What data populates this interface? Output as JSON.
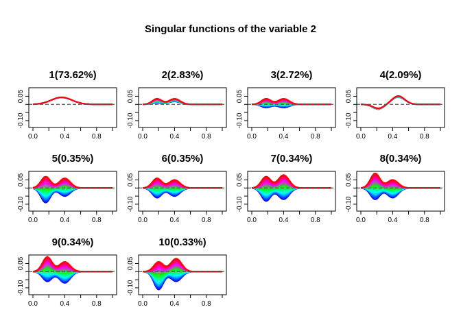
{
  "title": "Singular functions of the variable 2",
  "chart_data": {
    "type": "line",
    "title": "Singular functions of the variable 2",
    "layout": "3 rows x 4 columns, 10 panels",
    "xlim": [
      0,
      1
    ],
    "ylim": [
      -0.13,
      0.09
    ],
    "x_ticks": [
      "0.0",
      "0.4",
      "0.8"
    ],
    "x_tick_values": [
      0.0,
      0.4,
      0.8
    ],
    "y_ticks": [
      "-0.10",
      "0.05"
    ],
    "y_tick_values": [
      -0.1,
      0.05
    ],
    "reference_line": {
      "y": 0,
      "style": "dashed",
      "color": "#555555"
    },
    "color_ramp": [
      "#0000ff",
      "#00ffff",
      "#00ff00",
      "#ff00ff",
      "#ff0000"
    ],
    "panels": [
      {
        "label": "1(73.62%)",
        "curves": 10,
        "components": [
          {
            "center": 0.36,
            "width": 0.13,
            "amp": [
              0.042,
              0.044
            ]
          }
        ]
      },
      {
        "label": "2(2.83%)",
        "curves": 10,
        "components": [
          {
            "center": 0.18,
            "width": 0.06,
            "amp": [
              0.01,
              0.035
            ]
          },
          {
            "center": 0.4,
            "width": 0.07,
            "amp": [
              0.018,
              0.035
            ]
          }
        ]
      },
      {
        "label": "3(2.72%)",
        "curves": 10,
        "components": [
          {
            "center": 0.18,
            "width": 0.06,
            "amp": [
              -0.02,
              0.035
            ]
          },
          {
            "center": 0.4,
            "width": 0.07,
            "amp": [
              -0.02,
              0.035
            ]
          }
        ]
      },
      {
        "label": "4(2.09%)",
        "curves": 10,
        "components": [
          {
            "center": 0.22,
            "width": 0.07,
            "amp": [
              -0.03,
              -0.024
            ]
          },
          {
            "center": 0.47,
            "width": 0.08,
            "amp": [
              0.045,
              0.052
            ]
          }
        ]
      },
      {
        "label": "5(0.35%)",
        "curves": 20,
        "components": [
          {
            "center": 0.16,
            "width": 0.06,
            "amp": [
              -0.09,
              0.07
            ]
          },
          {
            "center": 0.4,
            "width": 0.07,
            "amp": [
              -0.05,
              0.06
            ]
          }
        ]
      },
      {
        "label": "6(0.35%)",
        "curves": 20,
        "components": [
          {
            "center": 0.18,
            "width": 0.06,
            "amp": [
              -0.06,
              0.06
            ]
          },
          {
            "center": 0.4,
            "width": 0.07,
            "amp": [
              -0.05,
              0.05
            ]
          }
        ]
      },
      {
        "label": "7(0.34%)",
        "curves": 20,
        "components": [
          {
            "center": 0.18,
            "width": 0.06,
            "amp": [
              -0.08,
              0.07
            ]
          },
          {
            "center": 0.4,
            "width": 0.07,
            "amp": [
              -0.07,
              0.08
            ]
          }
        ]
      },
      {
        "label": "8(0.34%)",
        "curves": 20,
        "components": [
          {
            "center": 0.18,
            "width": 0.06,
            "amp": [
              -0.07,
              0.09
            ]
          },
          {
            "center": 0.4,
            "width": 0.07,
            "amp": [
              -0.06,
              0.05
            ]
          }
        ]
      },
      {
        "label": "9(0.34%)",
        "curves": 20,
        "components": [
          {
            "center": 0.18,
            "width": 0.06,
            "amp": [
              -0.06,
              0.09
            ]
          },
          {
            "center": 0.4,
            "width": 0.07,
            "amp": [
              -0.07,
              0.06
            ]
          }
        ]
      },
      {
        "label": "10(0.33%)",
        "curves": 20,
        "components": [
          {
            "center": 0.2,
            "width": 0.06,
            "amp": [
              -0.11,
              0.06
            ]
          },
          {
            "center": 0.42,
            "width": 0.07,
            "amp": [
              -0.06,
              0.08
            ]
          }
        ]
      }
    ]
  }
}
